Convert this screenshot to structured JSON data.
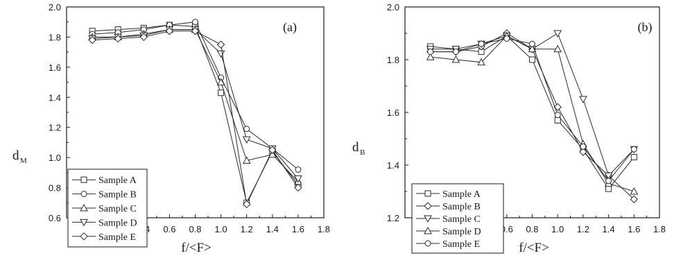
{
  "chart_data": [
    {
      "type": "line",
      "panel_label": "(a)",
      "xlabel": "f/<F>",
      "ylabel": "d",
      "ylabel_sub": "M",
      "xlim": [
        -0.2,
        1.8
      ],
      "ylim": [
        0.6,
        2.0
      ],
      "xticks": [
        "0.0",
        "0.2",
        "0.4",
        "0.6",
        "0.8",
        "1.0",
        "1.2",
        "1.4",
        "1.6",
        "1.8"
      ],
      "yticks": [
        "0.6",
        "0.8",
        "1.0",
        "1.2",
        "1.4",
        "1.6",
        "1.8",
        "2.0"
      ],
      "legend_position": "lower-left",
      "x": [
        0.0,
        0.2,
        0.4,
        0.6,
        0.8,
        1.0,
        1.2,
        1.4,
        1.6
      ],
      "series": [
        {
          "name": "Sample A",
          "marker": "square",
          "values": [
            1.84,
            1.85,
            1.86,
            1.88,
            1.87,
            1.43,
            0.7,
            1.04,
            0.82
          ]
        },
        {
          "name": "Sample B",
          "marker": "circle",
          "values": [
            1.82,
            1.83,
            1.85,
            1.88,
            1.9,
            1.53,
            1.19,
            1.06,
            0.92
          ]
        },
        {
          "name": "Sample C",
          "marker": "triangle-up",
          "values": [
            1.8,
            1.8,
            1.82,
            1.85,
            1.85,
            1.5,
            0.98,
            1.02,
            0.84
          ]
        },
        {
          "name": "Sample D",
          "marker": "triangle-down",
          "values": [
            1.79,
            1.8,
            1.81,
            1.85,
            1.85,
            1.69,
            1.12,
            1.06,
            0.86
          ]
        },
        {
          "name": "Sample E",
          "marker": "diamond",
          "values": [
            1.78,
            1.79,
            1.8,
            1.84,
            1.84,
            1.75,
            0.69,
            1.05,
            0.8
          ]
        }
      ]
    },
    {
      "type": "line",
      "panel_label": "(b)",
      "xlabel": "f/<F>",
      "ylabel": "d",
      "ylabel_sub": "B",
      "xlim": [
        -0.2,
        1.8
      ],
      "ylim": [
        1.2,
        2.0
      ],
      "xticks": [
        "0.0",
        "0.2",
        "0.4",
        "0.6",
        "0.8",
        "1.0",
        "1.2",
        "1.4",
        "1.6",
        "1.8"
      ],
      "yticks": [
        "1.2",
        "1.4",
        "1.6",
        "1.8",
        "2.0"
      ],
      "legend_position": "lower-left",
      "x": [
        0.0,
        0.2,
        0.4,
        0.6,
        0.8,
        1.0,
        1.2,
        1.4,
        1.6
      ],
      "series": [
        {
          "name": "Sample A",
          "marker": "square",
          "values": [
            1.85,
            1.84,
            1.83,
            1.89,
            1.8,
            1.57,
            1.46,
            1.31,
            1.43
          ]
        },
        {
          "name": "Sample B",
          "marker": "diamond",
          "values": [
            1.83,
            1.83,
            1.85,
            1.9,
            1.84,
            1.62,
            1.45,
            1.36,
            1.27
          ]
        },
        {
          "name": "Sample C",
          "marker": "triangle-down",
          "values": [
            1.84,
            1.84,
            1.86,
            1.89,
            1.84,
            1.9,
            1.65,
            1.36,
            1.46
          ]
        },
        {
          "name": "Sample D",
          "marker": "triangle-up",
          "values": [
            1.81,
            1.8,
            1.79,
            1.89,
            1.84,
            1.84,
            1.48,
            1.33,
            1.3
          ]
        },
        {
          "name": "Sample E",
          "marker": "circle",
          "values": [
            1.83,
            1.83,
            1.86,
            1.88,
            1.86,
            1.59,
            1.47,
            1.34,
            1.46
          ]
        }
      ]
    }
  ]
}
